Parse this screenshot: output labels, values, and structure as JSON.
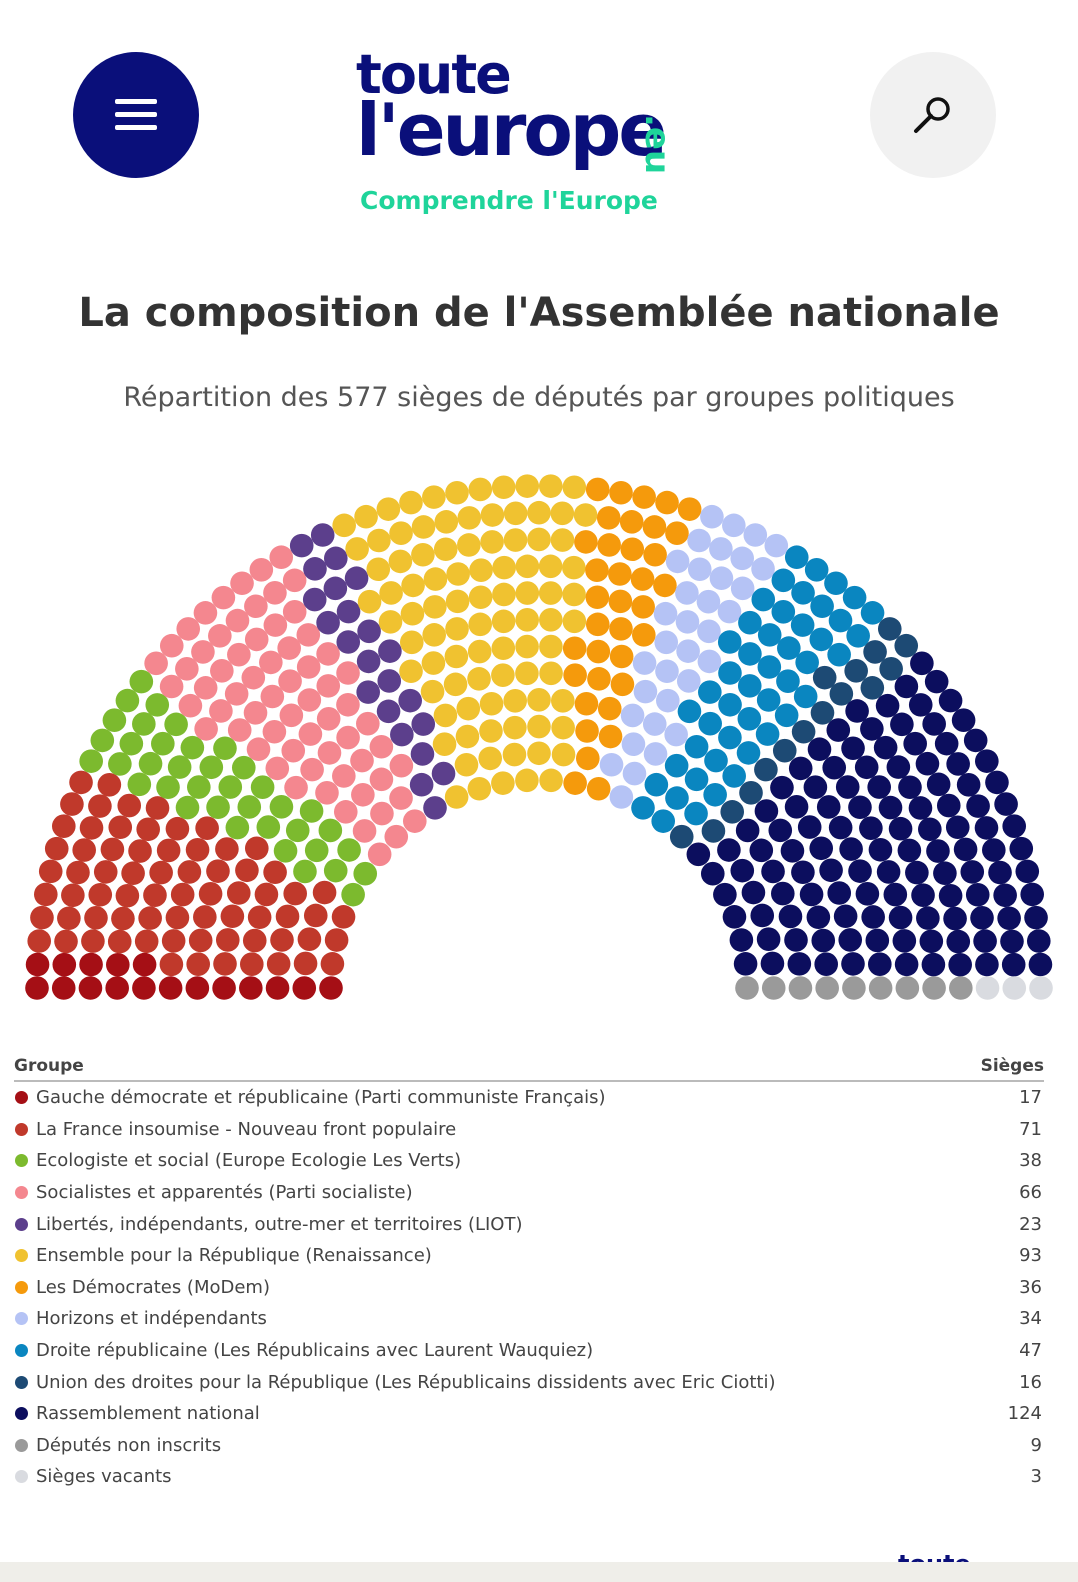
{
  "header": {
    "logo_line1": "toute",
    "logo_line2": "l'europe",
    "logo_suffix": ".eu",
    "tagline": "Comprendre l'Europe",
    "footer_logo": "toute"
  },
  "colors": {
    "brand_navy": "#0a0f7a",
    "brand_green": "#1fd49a"
  },
  "chart_data": {
    "type": "hemicycle",
    "title": "La composition de l'Assemblée nationale",
    "subtitle": "Répartition des 577 sièges de députés par groupes politiques",
    "total_seats": 577,
    "legend_header": {
      "group": "Groupe",
      "seats": "Sièges"
    },
    "groups": [
      {
        "name": "Gauche démocrate et républicaine (Parti communiste Français)",
        "seats": 17,
        "color": "#a50f15"
      },
      {
        "name": "La France insoumise - Nouveau front populaire",
        "seats": 71,
        "color": "#c0392b"
      },
      {
        "name": "Ecologiste et social (Europe Ecologie Les Verts)",
        "seats": 38,
        "color": "#7cba2e"
      },
      {
        "name": "Socialistes et apparentés (Parti socialiste)",
        "seats": 66,
        "color": "#f4878f"
      },
      {
        "name": "Libertés, indépendants, outre-mer et territoires (LIOT)",
        "seats": 23,
        "color": "#5c3f8c"
      },
      {
        "name": "Ensemble pour la République (Renaissance)",
        "seats": 93,
        "color": "#f0c230"
      },
      {
        "name": "Les Démocrates (MoDem)",
        "seats": 36,
        "color": "#f59a0c"
      },
      {
        "name": "Horizons et indépendants",
        "seats": 34,
        "color": "#b5c3f5"
      },
      {
        "name": "Droite républicaine (Les Républicains avec Laurent Wauquiez)",
        "seats": 47,
        "color": "#0a86c0"
      },
      {
        "name": "Union des droites pour la République (Les Républicains dissidents avec Eric Ciotti)",
        "seats": 16,
        "color": "#1d4a74"
      },
      {
        "name": "Rassemblement national",
        "seats": 124,
        "color": "#0c0e5e"
      },
      {
        "name": "Députés non inscrits",
        "seats": 9,
        "color": "#9a9a9a"
      },
      {
        "name": "Sièges vacants",
        "seats": 3,
        "color": "#d9dbe0"
      }
    ]
  }
}
